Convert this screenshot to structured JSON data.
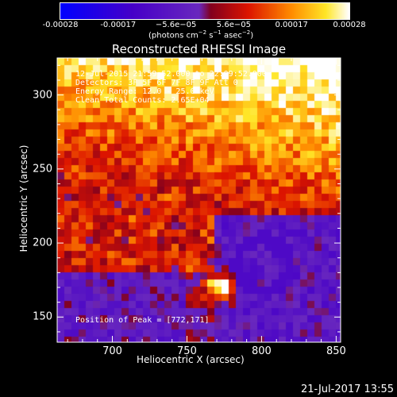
{
  "colorbar": {
    "ticks": [
      "-0.00028",
      "-0.00017",
      "−5.6e−05",
      "5.6e−05",
      "0.00017",
      "0.00028"
    ],
    "units_prefix": "(photons cm",
    "units_exp1": "−2",
    "units_mid1": " s",
    "units_exp2": "−1",
    "units_mid2": " asec",
    "units_exp3": "−2",
    "units_suffix": ")"
  },
  "chart_data": {
    "type": "heatmap",
    "title": "Reconstructed RHESSI Image",
    "xlabel": "Heliocentric X (arcsec)",
    "ylabel": "Heliocentric Y (arcsec)",
    "xlim": [
      663,
      853
    ],
    "ylim": [
      133,
      325
    ],
    "xticks": [
      700,
      750,
      800,
      850
    ],
    "yticks": [
      150,
      200,
      250,
      300
    ],
    "colorbar_range": [
      -0.00028,
      0.00028
    ],
    "peak": [
      772,
      171
    ],
    "annotations": {
      "time_range": "12-Jul-2015 21:59:52.000 to 22:09:52.000",
      "detectors": "Detectors: 3F 5F 6F 7F 8F 9F Att 0",
      "energy": "Energy Range: 12.0 - 25.0 keV",
      "clean": "Clean    Total Counts: 2.65E+04",
      "peak_label": "Position of Peak = [772,171]"
    }
  },
  "footer": {
    "date": "21-Jul-2017 13:55"
  }
}
